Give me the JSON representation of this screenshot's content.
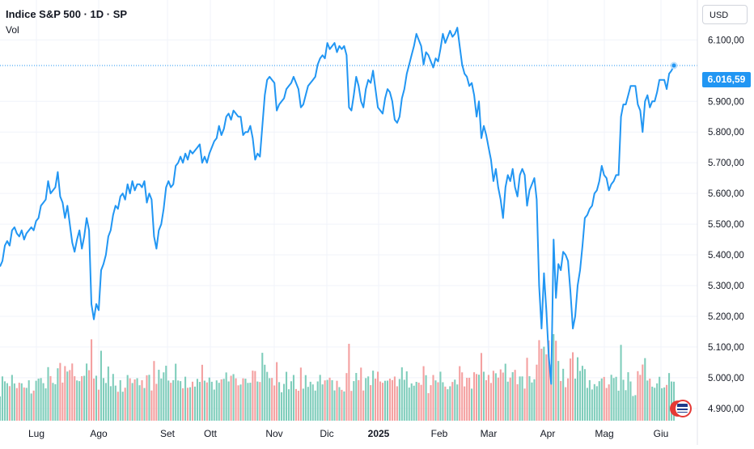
{
  "header": {
    "title": "Indice S&P 500 · 1D · SP",
    "volume_label": "Vol",
    "currency": "USD"
  },
  "last_price": "6.016,59",
  "colors": {
    "line": "#2196f3",
    "vol_up": "#7fcdbb",
    "vol_down": "#f4a0a0",
    "grid": "#f0f3fa",
    "last_price_line": "#2196f3"
  },
  "chart_data": {
    "type": "line",
    "title": "Indice S&P 500 · 1D · SP",
    "xlabel": "",
    "ylabel": "",
    "ylim": [
      4860,
      6230
    ],
    "x_ticks": [
      "Lug",
      "Ago",
      "Set",
      "Ott",
      "Nov",
      "Dic",
      "2025",
      "Feb",
      "Mar",
      "Apr",
      "Mag",
      "Giu"
    ],
    "y_ticks": [
      "4.900,00",
      "5.000,00",
      "5.100,00",
      "5.200,00",
      "5.300,00",
      "5.400,00",
      "5.500,00",
      "5.600,00",
      "5.700,00",
      "5.800,00",
      "5.900,00",
      "6.100,00"
    ],
    "y_tick_values": [
      4900,
      5000,
      5100,
      5200,
      5300,
      5400,
      5500,
      5600,
      5700,
      5800,
      5900,
      6100
    ],
    "series": [
      {
        "values": [
          5362,
          5380,
          5430,
          5445,
          5430,
          5480,
          5490,
          5470,
          5460,
          5480,
          5450,
          5470,
          5480,
          5490,
          5480,
          5510,
          5520,
          5560,
          5570,
          5580,
          5640,
          5600,
          5610,
          5620,
          5670,
          5590,
          5570,
          5520,
          5560,
          5500,
          5440,
          5410,
          5450,
          5480,
          5420,
          5460,
          5520,
          5480,
          5240,
          5190,
          5240,
          5220,
          5350,
          5370,
          5400,
          5460,
          5480,
          5530,
          5560,
          5550,
          5590,
          5600,
          5580,
          5630,
          5600,
          5640,
          5610,
          5630,
          5630,
          5620,
          5640,
          5570,
          5600,
          5580,
          5460,
          5420,
          5480,
          5500,
          5550,
          5620,
          5640,
          5620,
          5630,
          5690,
          5700,
          5720,
          5700,
          5730,
          5710,
          5740,
          5730,
          5740,
          5750,
          5760,
          5700,
          5720,
          5700,
          5730,
          5750,
          5770,
          5780,
          5820,
          5790,
          5810,
          5850,
          5860,
          5840,
          5870,
          5860,
          5850,
          5850,
          5790,
          5800,
          5800,
          5820,
          5780,
          5710,
          5730,
          5720,
          5820,
          5920,
          5970,
          5980,
          5970,
          5960,
          5870,
          5890,
          5900,
          5910,
          5940,
          5950,
          5960,
          5980,
          5960,
          5940,
          5880,
          5890,
          5920,
          5950,
          5960,
          5970,
          5980,
          6020,
          6040,
          6050,
          6040,
          6090,
          6070,
          6080,
          6090,
          6060,
          6080,
          6070,
          6080,
          6050,
          5880,
          5870,
          5920,
          5980,
          5950,
          5900,
          5880,
          5940,
          5970,
          5960,
          6000,
          5940,
          5880,
          5870,
          5860,
          5910,
          5940,
          5930,
          5900,
          5840,
          5830,
          5850,
          5910,
          5940,
          5990,
          6020,
          6050,
          6080,
          6120,
          6100,
          6080,
          6020,
          6060,
          6050,
          6030,
          6010,
          6040,
          6030,
          6070,
          6120,
          6090,
          6110,
          6130,
          6110,
          6120,
          6140,
          6080,
          6020,
          5990,
          5980,
          5950,
          5960,
          5920,
          5850,
          5900,
          5780,
          5820,
          5790,
          5750,
          5710,
          5640,
          5680,
          5620,
          5580,
          5520,
          5620,
          5660,
          5640,
          5680,
          5620,
          5590,
          5660,
          5680,
          5660,
          5560,
          5610,
          5630,
          5650,
          5580,
          5300,
          5160,
          5340,
          5220,
          5070,
          4980,
          5450,
          5260,
          5370,
          5350,
          5410,
          5400,
          5380,
          5280,
          5160,
          5200,
          5300,
          5350,
          5430,
          5520,
          5530,
          5550,
          5560,
          5600,
          5610,
          5640,
          5690,
          5660,
          5650,
          5610,
          5630,
          5640,
          5660,
          5660,
          5850,
          5890,
          5890,
          5920,
          5950,
          5950,
          5950,
          5890,
          5870,
          5800,
          5900,
          5920,
          5880,
          5900,
          5900,
          5930,
          5970,
          5970,
          5970,
          5940,
          5990,
          6000,
          6016.59
        ]
      }
    ],
    "volume_direction": "mixed"
  }
}
